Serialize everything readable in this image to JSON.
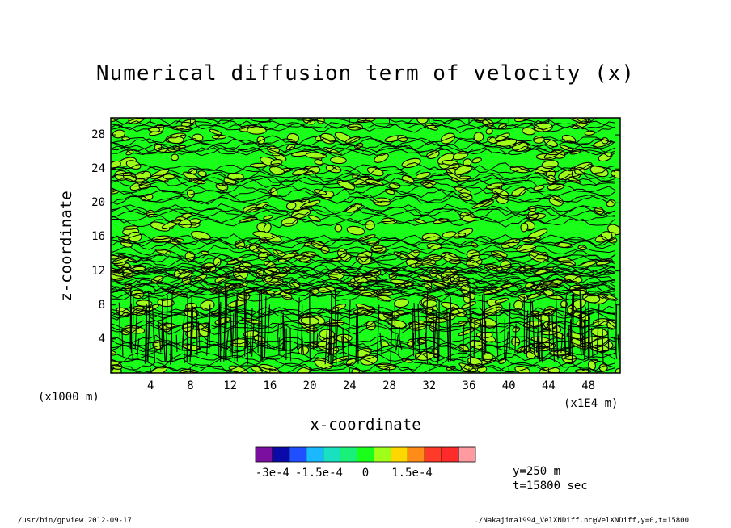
{
  "chart_data": {
    "type": "heatmap",
    "title": "Numerical diffusion term of velocity (x)",
    "xlabel": "x-coordinate",
    "ylabel": "z-coordinate",
    "x_unit_left": "(x1000 m)",
    "x_unit_right": "(x1E4 m)",
    "x_ticks": [
      "4",
      "8",
      "12",
      "16",
      "20",
      "24",
      "28",
      "32",
      "36",
      "40",
      "44",
      "48"
    ],
    "x_tick_values": [
      4,
      8,
      12,
      16,
      20,
      24,
      28,
      32,
      36,
      40,
      44,
      48
    ],
    "xlim": [
      0,
      51.2
    ],
    "y_ticks": [
      "4",
      "8",
      "12",
      "16",
      "20",
      "24",
      "28"
    ],
    "y_tick_values": [
      4,
      8,
      12,
      16,
      20,
      24,
      28
    ],
    "ylim": [
      0,
      30
    ],
    "colorbar": {
      "levels": [
        -0.0003,
        -0.00025,
        -0.0002,
        -0.00015,
        -0.0001,
        -5e-05,
        0,
        5e-05,
        0.0001,
        0.00015,
        0.0002,
        0.00025,
        0.0003
      ],
      "colors": [
        "#7a0fa0",
        "#0a0aa8",
        "#1f4fff",
        "#19b8ff",
        "#19e0c0",
        "#19f07a",
        "#19ff19",
        "#a0ff19",
        "#ffd700",
        "#ff8c19",
        "#ff3a28",
        "#ff2a2a",
        "#ff9aa0"
      ],
      "tick_labels": [
        "-3e-4",
        "-1.5e-4",
        "0",
        "1.5e-4"
      ],
      "tick_values": [
        -0.0003,
        -0.00015,
        0,
        0.00015
      ]
    },
    "field_note": "",
    "dominant_colors": [
      "#19ff19",
      "#a0ff19"
    ],
    "contour_color": "#000000"
  },
  "info": {
    "y_line": "y=250 m",
    "t_line": "t=15800 sec"
  },
  "footer": {
    "left": "/usr/bin/gpview   2012-09-17",
    "right": "./Nakajima1994_VelXNDiff.nc@VelXNDiff,y=0,t=15800"
  }
}
